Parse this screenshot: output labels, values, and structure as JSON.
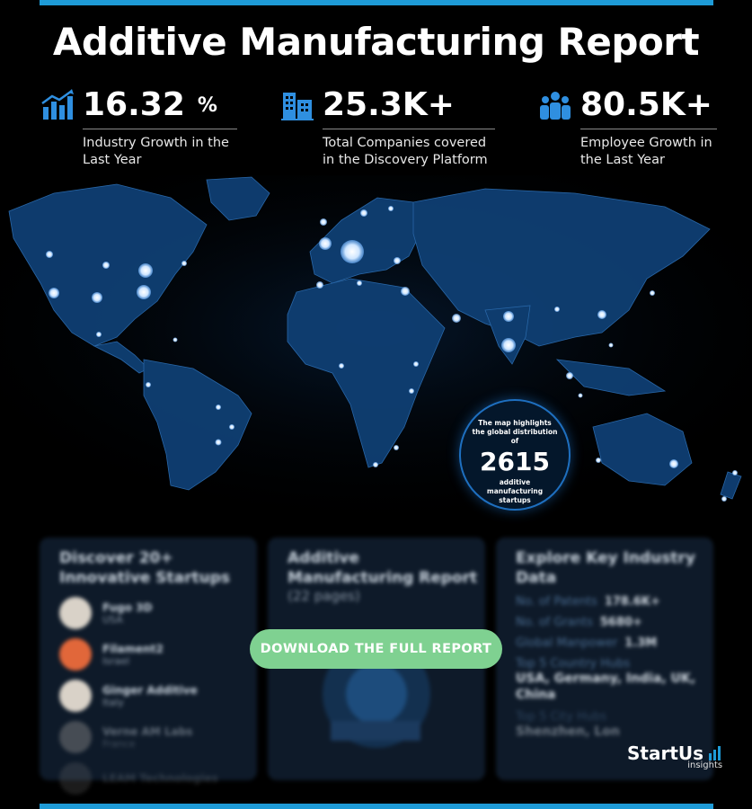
{
  "title": "Additive Manufacturing Report",
  "stats": [
    {
      "value": "16.32",
      "suffix": "%",
      "label": "Industry Growth in the\nLast Year",
      "icon": "growth-chart-icon"
    },
    {
      "value": "25.3K+",
      "suffix": "",
      "label": "Total Companies covered\nin the Discovery Platform",
      "icon": "buildings-icon"
    },
    {
      "value": "80.5K+",
      "suffix": "",
      "label": "Employee Growth in\nthe Last Year",
      "icon": "people-icon"
    }
  ],
  "map_badge": {
    "caption": "The map highlights the global distribution of",
    "count": "2615",
    "caption2": "additive manufacturing startups"
  },
  "cards": {
    "startups": {
      "title": "Discover 20+ Innovative Startups",
      "items": [
        {
          "name": "Fugo 3D",
          "country": "USA"
        },
        {
          "name": "Filament2",
          "country": "Israel"
        },
        {
          "name": "Ginger Additive",
          "country": "Italy"
        },
        {
          "name": "Verne AM Labs",
          "country": "France"
        },
        {
          "name": "LEAM Technologies",
          "country": ""
        }
      ]
    },
    "report": {
      "title": "Additive Manufacturing Report",
      "pages": "(22 pages)"
    },
    "industry": {
      "title": "Explore Key Industry Data",
      "patents_label": "No. of Patents",
      "patents_value": "178.6K+",
      "grants_label": "No. of Grants",
      "grants_value": "5680+",
      "manpower_label": "Global Manpower",
      "manpower_value": "1.3M",
      "hubs_label": "Top 5 Country Hubs",
      "hubs_value": "USA, Germany, India, UK, China",
      "city_label": "Top 5 City Hubs",
      "city_value": "Shenzhen, Lon"
    }
  },
  "cta_label": "DOWNLOAD THE FULL REPORT",
  "brand": {
    "name": "StartUs",
    "sub": "insights"
  },
  "colors": {
    "accent": "#1e9bd7",
    "map_land": "#0f3f73",
    "cta": "#7fd191"
  }
}
